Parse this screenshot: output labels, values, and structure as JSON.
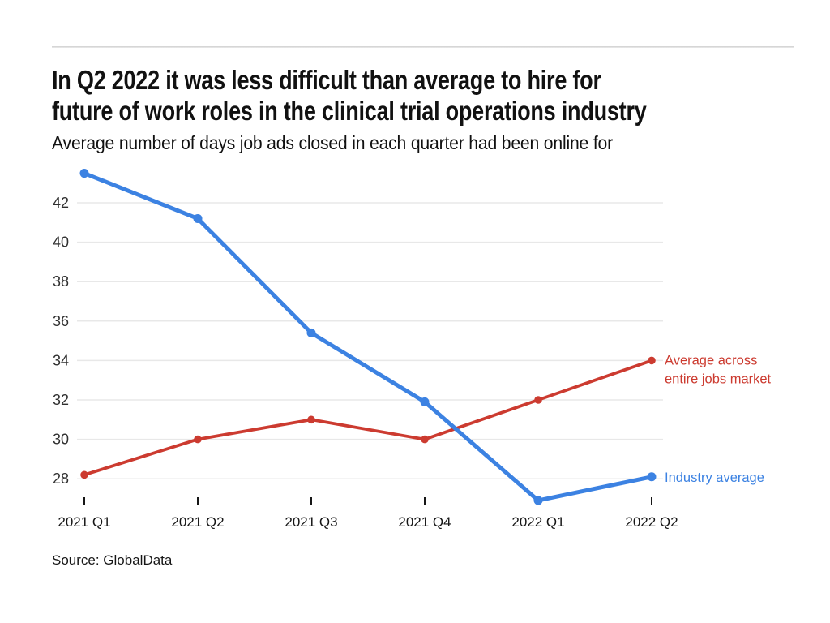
{
  "header": {
    "title_lines": [
      "In Q2 2022 it was less difficult than average to hire for",
      "future of work roles in the clinical trial operations industry"
    ],
    "subtitle": "Average number of days job ads closed in each quarter had been online for"
  },
  "footer": {
    "source": "Source: GlobalData"
  },
  "colors": {
    "industry_blue": "#3c82e2",
    "market_red": "#cc3b30",
    "gridline": "#e8e8e8",
    "text": "#161616"
  },
  "chart_data": {
    "type": "line",
    "title": "In Q2 2022 it was less difficult than average to hire for future of work roles in the clinical trial operations industry",
    "subtitle": "Average number of days job ads closed in each quarter had been online for",
    "categories": [
      "2021 Q1",
      "2021 Q2",
      "2021 Q3",
      "2021 Q4",
      "2022 Q1",
      "2022 Q2"
    ],
    "series": [
      {
        "name": "Industry average",
        "color": "#3c82e2",
        "values": [
          43.5,
          41.2,
          35.4,
          31.9,
          26.9,
          28.1
        ],
        "label_lines": [
          "Industry average"
        ]
      },
      {
        "name": "Average across entire jobs market",
        "color": "#cc3b30",
        "values": [
          28.2,
          30,
          31,
          30,
          32,
          34
        ],
        "label_lines": [
          "Average across",
          "entire jobs market"
        ]
      }
    ],
    "xlabel": "",
    "ylabel": "",
    "y_axis": {
      "min": 28,
      "max": 42,
      "tick_step": 2,
      "ticks": [
        28,
        30,
        32,
        34,
        36,
        38,
        40,
        42
      ]
    },
    "ylim": [
      26.5,
      44
    ],
    "grid": true,
    "legend_position": "right-of-last-point",
    "source": "Source: GlobalData"
  }
}
